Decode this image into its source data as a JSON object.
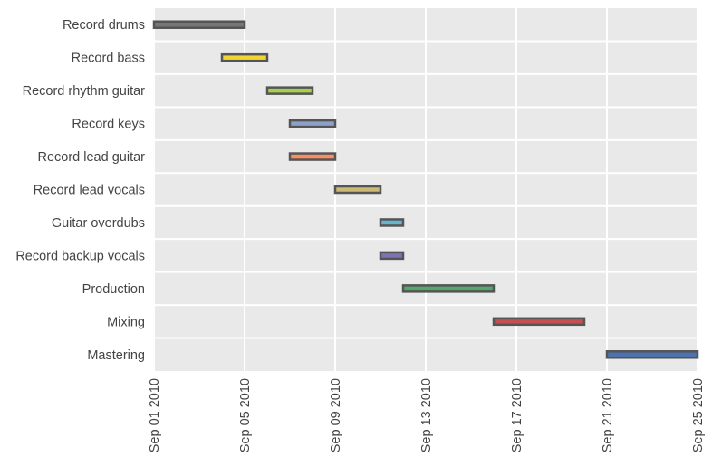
{
  "colors": {
    "plot_background": "#e9e9e9",
    "grid": "#ffffff",
    "bar_edge": "#555555",
    "label_text": "#444444"
  },
  "chart_data": {
    "type": "gantt",
    "title": "",
    "xlabel": "",
    "ylabel": "",
    "x_axis": {
      "type": "date",
      "range": [
        "2010-09-01",
        "2010-09-25"
      ],
      "tick_dates": [
        "2010-09-01",
        "2010-09-05",
        "2010-09-09",
        "2010-09-13",
        "2010-09-17",
        "2010-09-21",
        "2010-09-25"
      ],
      "tick_labels": [
        "Sep 01 2010",
        "Sep 05 2010",
        "Sep 09 2010",
        "Sep 13 2010",
        "Sep 17 2010",
        "Sep 21 2010",
        "Sep 25 2010"
      ],
      "tick_label_rotation": "vertical"
    },
    "grid": true,
    "tasks": [
      {
        "name": "Record drums",
        "start": "2010-09-01",
        "end": "2010-09-05",
        "color": "#777777"
      },
      {
        "name": "Record bass",
        "start": "2010-09-04",
        "end": "2010-09-06",
        "color": "#f2d52f"
      },
      {
        "name": "Record rhythm guitar",
        "start": "2010-09-06",
        "end": "2010-09-08",
        "color": "#a6d24a"
      },
      {
        "name": "Record keys",
        "start": "2010-09-07",
        "end": "2010-09-09",
        "color": "#8da0cb"
      },
      {
        "name": "Record lead guitar",
        "start": "2010-09-07",
        "end": "2010-09-09",
        "color": "#fc8d62"
      },
      {
        "name": "Record lead vocals",
        "start": "2010-09-09",
        "end": "2010-09-11",
        "color": "#ccb974"
      },
      {
        "name": "Guitar overdubs",
        "start": "2010-09-11",
        "end": "2010-09-12",
        "color": "#64b5cd"
      },
      {
        "name": "Record backup vocals",
        "start": "2010-09-11",
        "end": "2010-09-12",
        "color": "#8172b2"
      },
      {
        "name": "Production",
        "start": "2010-09-12",
        "end": "2010-09-16",
        "color": "#55a868"
      },
      {
        "name": "Mixing",
        "start": "2010-09-16",
        "end": "2010-09-20",
        "color": "#c44e52"
      },
      {
        "name": "Mastering",
        "start": "2010-09-21",
        "end": "2010-09-25",
        "color": "#4c72b0"
      }
    ]
  }
}
